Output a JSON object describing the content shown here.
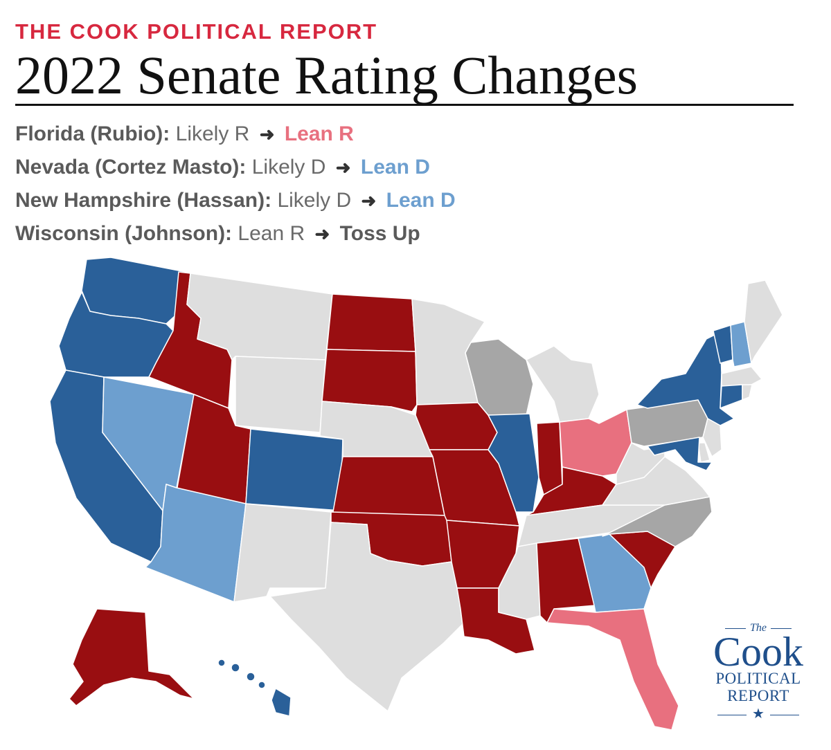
{
  "header": {
    "kicker": "THE COOK POLITICAL REPORT",
    "title": "2022 Senate Rating Changes"
  },
  "changes": [
    {
      "state": "Florida (Rubio):",
      "from": "Likely R",
      "to": "Lean R",
      "to_class": "lean-r"
    },
    {
      "state": "Nevada (Cortez Masto):",
      "from": "Likely D",
      "to": "Lean D",
      "to_class": "lean-d"
    },
    {
      "state": "New Hampshire (Hassan):",
      "from": "Likely D",
      "to": "Lean D",
      "to_class": "lean-d"
    },
    {
      "state": "Wisconsin (Johnson):",
      "from": "Lean R",
      "to": "Toss Up",
      "to_class": "toss"
    }
  ],
  "arrow_icon": "right-arrow-icon",
  "colors": {
    "kicker": "#d7283f",
    "solid_d": "#2a6099",
    "lean_d": "#6d9fcf",
    "solid_r": "#990e11",
    "lean_r": "#e8707f",
    "toss_up": "#a6a6a6",
    "no_race": "#dedede"
  },
  "map": {
    "states": [
      {
        "code": "WA",
        "rating": "solid_d"
      },
      {
        "code": "OR",
        "rating": "solid_d"
      },
      {
        "code": "CA",
        "rating": "solid_d"
      },
      {
        "code": "NV",
        "rating": "lean_d"
      },
      {
        "code": "ID",
        "rating": "solid_r"
      },
      {
        "code": "MT",
        "rating": "no_race"
      },
      {
        "code": "WY",
        "rating": "no_race"
      },
      {
        "code": "UT",
        "rating": "solid_r"
      },
      {
        "code": "AZ",
        "rating": "lean_d"
      },
      {
        "code": "CO",
        "rating": "solid_d"
      },
      {
        "code": "NM",
        "rating": "no_race"
      },
      {
        "code": "ND",
        "rating": "solid_r"
      },
      {
        "code": "SD",
        "rating": "solid_r"
      },
      {
        "code": "NE",
        "rating": "no_race"
      },
      {
        "code": "KS",
        "rating": "solid_r"
      },
      {
        "code": "OK",
        "rating": "solid_r"
      },
      {
        "code": "TX",
        "rating": "no_race"
      },
      {
        "code": "MN",
        "rating": "no_race"
      },
      {
        "code": "IA",
        "rating": "solid_r"
      },
      {
        "code": "MO",
        "rating": "solid_r"
      },
      {
        "code": "AR",
        "rating": "solid_r"
      },
      {
        "code": "LA",
        "rating": "solid_r"
      },
      {
        "code": "WI",
        "rating": "toss_up"
      },
      {
        "code": "IL",
        "rating": "solid_d"
      },
      {
        "code": "MI",
        "rating": "no_race"
      },
      {
        "code": "IN",
        "rating": "solid_r"
      },
      {
        "code": "OH",
        "rating": "lean_r"
      },
      {
        "code": "KY",
        "rating": "solid_r"
      },
      {
        "code": "TN",
        "rating": "no_race"
      },
      {
        "code": "MS",
        "rating": "no_race"
      },
      {
        "code": "AL",
        "rating": "solid_r"
      },
      {
        "code": "GA",
        "rating": "lean_d"
      },
      {
        "code": "FL",
        "rating": "lean_r"
      },
      {
        "code": "SC",
        "rating": "solid_r"
      },
      {
        "code": "NC",
        "rating": "toss_up"
      },
      {
        "code": "VA",
        "rating": "no_race"
      },
      {
        "code": "WV",
        "rating": "no_race"
      },
      {
        "code": "PA",
        "rating": "toss_up"
      },
      {
        "code": "NY",
        "rating": "solid_d"
      },
      {
        "code": "VT",
        "rating": "solid_d"
      },
      {
        "code": "NH",
        "rating": "lean_d"
      },
      {
        "code": "ME",
        "rating": "no_race"
      },
      {
        "code": "MA",
        "rating": "no_race"
      },
      {
        "code": "CT",
        "rating": "solid_d"
      },
      {
        "code": "RI",
        "rating": "no_race"
      },
      {
        "code": "NJ",
        "rating": "no_race"
      },
      {
        "code": "DE",
        "rating": "no_race"
      },
      {
        "code": "MD",
        "rating": "solid_d"
      },
      {
        "code": "AK",
        "rating": "solid_r"
      },
      {
        "code": "HI",
        "rating": "solid_d"
      }
    ]
  },
  "logo": {
    "the": "The",
    "cook": "Cook",
    "line1": "POLITICAL",
    "line2": "REPORT",
    "star": "★"
  }
}
